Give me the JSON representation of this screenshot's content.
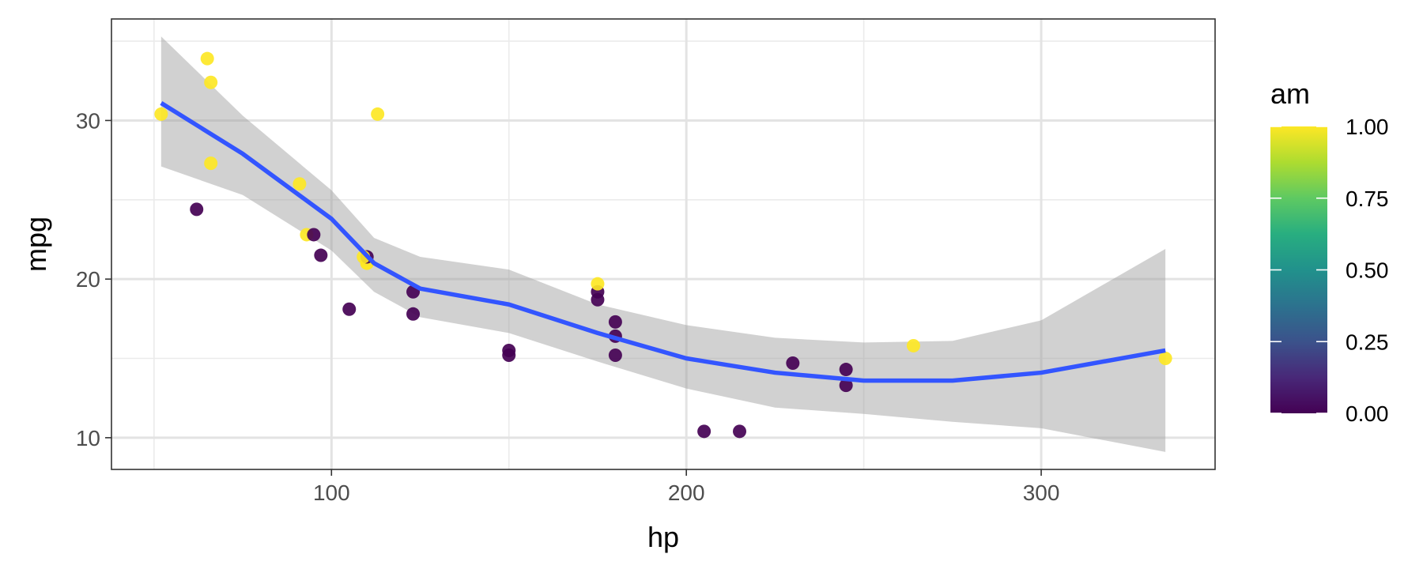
{
  "chart_data": {
    "type": "scatter",
    "title": "",
    "xlabel": "hp",
    "ylabel": "mpg",
    "xlim": [
      38,
      349
    ],
    "ylim": [
      8,
      36.4
    ],
    "x_ticks": [
      100,
      200,
      300
    ],
    "y_ticks": [
      10,
      20,
      30
    ],
    "grid": true,
    "points": [
      {
        "x": 110,
        "y": 21.0,
        "am": 1
      },
      {
        "x": 110,
        "y": 21.0,
        "am": 1
      },
      {
        "x": 93,
        "y": 22.8,
        "am": 1
      },
      {
        "x": 110,
        "y": 21.4,
        "am": 0
      },
      {
        "x": 175,
        "y": 18.7,
        "am": 0
      },
      {
        "x": 105,
        "y": 18.1,
        "am": 0
      },
      {
        "x": 245,
        "y": 14.3,
        "am": 0
      },
      {
        "x": 62,
        "y": 24.4,
        "am": 0
      },
      {
        "x": 95,
        "y": 22.8,
        "am": 0
      },
      {
        "x": 123,
        "y": 19.2,
        "am": 0
      },
      {
        "x": 123,
        "y": 17.8,
        "am": 0
      },
      {
        "x": 180,
        "y": 16.4,
        "am": 0
      },
      {
        "x": 180,
        "y": 17.3,
        "am": 0
      },
      {
        "x": 180,
        "y": 15.2,
        "am": 0
      },
      {
        "x": 205,
        "y": 10.4,
        "am": 0
      },
      {
        "x": 215,
        "y": 10.4,
        "am": 0
      },
      {
        "x": 230,
        "y": 14.7,
        "am": 0
      },
      {
        "x": 66,
        "y": 32.4,
        "am": 1
      },
      {
        "x": 52,
        "y": 30.4,
        "am": 1
      },
      {
        "x": 65,
        "y": 33.9,
        "am": 1
      },
      {
        "x": 97,
        "y": 21.5,
        "am": 0
      },
      {
        "x": 150,
        "y": 15.5,
        "am": 0
      },
      {
        "x": 150,
        "y": 15.2,
        "am": 0
      },
      {
        "x": 245,
        "y": 13.3,
        "am": 0
      },
      {
        "x": 175,
        "y": 19.2,
        "am": 0
      },
      {
        "x": 66,
        "y": 27.3,
        "am": 1
      },
      {
        "x": 91,
        "y": 26.0,
        "am": 1
      },
      {
        "x": 113,
        "y": 30.4,
        "am": 1
      },
      {
        "x": 264,
        "y": 15.8,
        "am": 1
      },
      {
        "x": 175,
        "y": 19.7,
        "am": 1
      },
      {
        "x": 335,
        "y": 15.0,
        "am": 1
      },
      {
        "x": 109,
        "y": 21.4,
        "am": 1
      }
    ],
    "smooth": {
      "method": "loess",
      "color": "#3355ff",
      "band_color": "#999999",
      "x": [
        52,
        75,
        100,
        112,
        125,
        150,
        175,
        200,
        225,
        250,
        275,
        300,
        335
      ],
      "y": [
        31.1,
        27.9,
        23.8,
        21.0,
        19.4,
        18.4,
        16.6,
        15.0,
        14.1,
        13.6,
        13.6,
        14.1,
        15.5
      ],
      "lower": [
        27.1,
        25.3,
        21.8,
        19.2,
        17.6,
        16.6,
        14.8,
        13.1,
        11.9,
        11.5,
        11.0,
        10.6,
        9.1
      ],
      "upper": [
        35.3,
        30.3,
        25.6,
        22.6,
        21.4,
        20.6,
        18.4,
        17.1,
        16.3,
        16.0,
        16.1,
        17.4,
        21.9
      ]
    },
    "legend": {
      "title": "am",
      "position": "right",
      "min": 0,
      "max": 1,
      "labels": [
        "0.00",
        "0.25",
        "0.50",
        "0.75",
        "1.00"
      ],
      "values": [
        0,
        0.25,
        0.5,
        0.75,
        1
      ],
      "palette": [
        "#440154",
        "#3b528b",
        "#21918c",
        "#5ec962",
        "#fde725"
      ]
    }
  }
}
